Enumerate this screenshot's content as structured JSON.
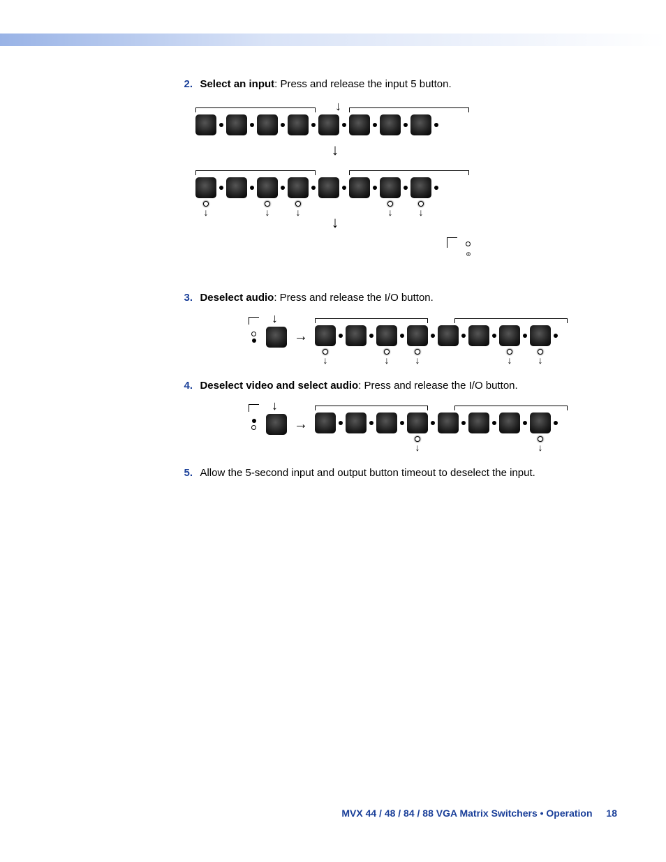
{
  "steps": {
    "s2": {
      "num": "2.",
      "bold": "Select an input",
      "rest": ": Press and release the input 5 button."
    },
    "s3": {
      "num": "3.",
      "bold": "Deselect audio",
      "rest": ": Press and release the I/O button."
    },
    "s4": {
      "num": "4.",
      "bold": "Deselect video and select audio",
      "rest": ": Press and release the I/O button."
    },
    "s5": {
      "num": "5.",
      "rest": "Allow the 5-second input and output button timeout to deselect the input."
    }
  },
  "footer": {
    "title": "MVX 44 / 48 / 84 / 88 VGA Matrix Switchers • Operation",
    "page": "18"
  },
  "symbols": {
    "darrow": "↓",
    "rarrow": "→"
  },
  "colors": {
    "accent": "#1a3f99",
    "button_bg": "#000000",
    "led_on": "#ffffff",
    "led_off": "#000000",
    "bg": "#ffffff"
  },
  "diagrams": {
    "row_buttons": 8,
    "step2_row1_leds": [
      "off",
      "off",
      "off",
      "off",
      "off",
      "off",
      "off",
      "off"
    ],
    "step2_row2_leds_below": [
      true,
      false,
      true,
      true,
      false,
      false,
      true,
      true
    ],
    "step3_outputs_leds_below": [
      true,
      false,
      true,
      true,
      false,
      false,
      true,
      true
    ],
    "step4_outputs_leds_below": [
      false,
      false,
      false,
      true,
      false,
      false,
      false,
      true
    ]
  }
}
